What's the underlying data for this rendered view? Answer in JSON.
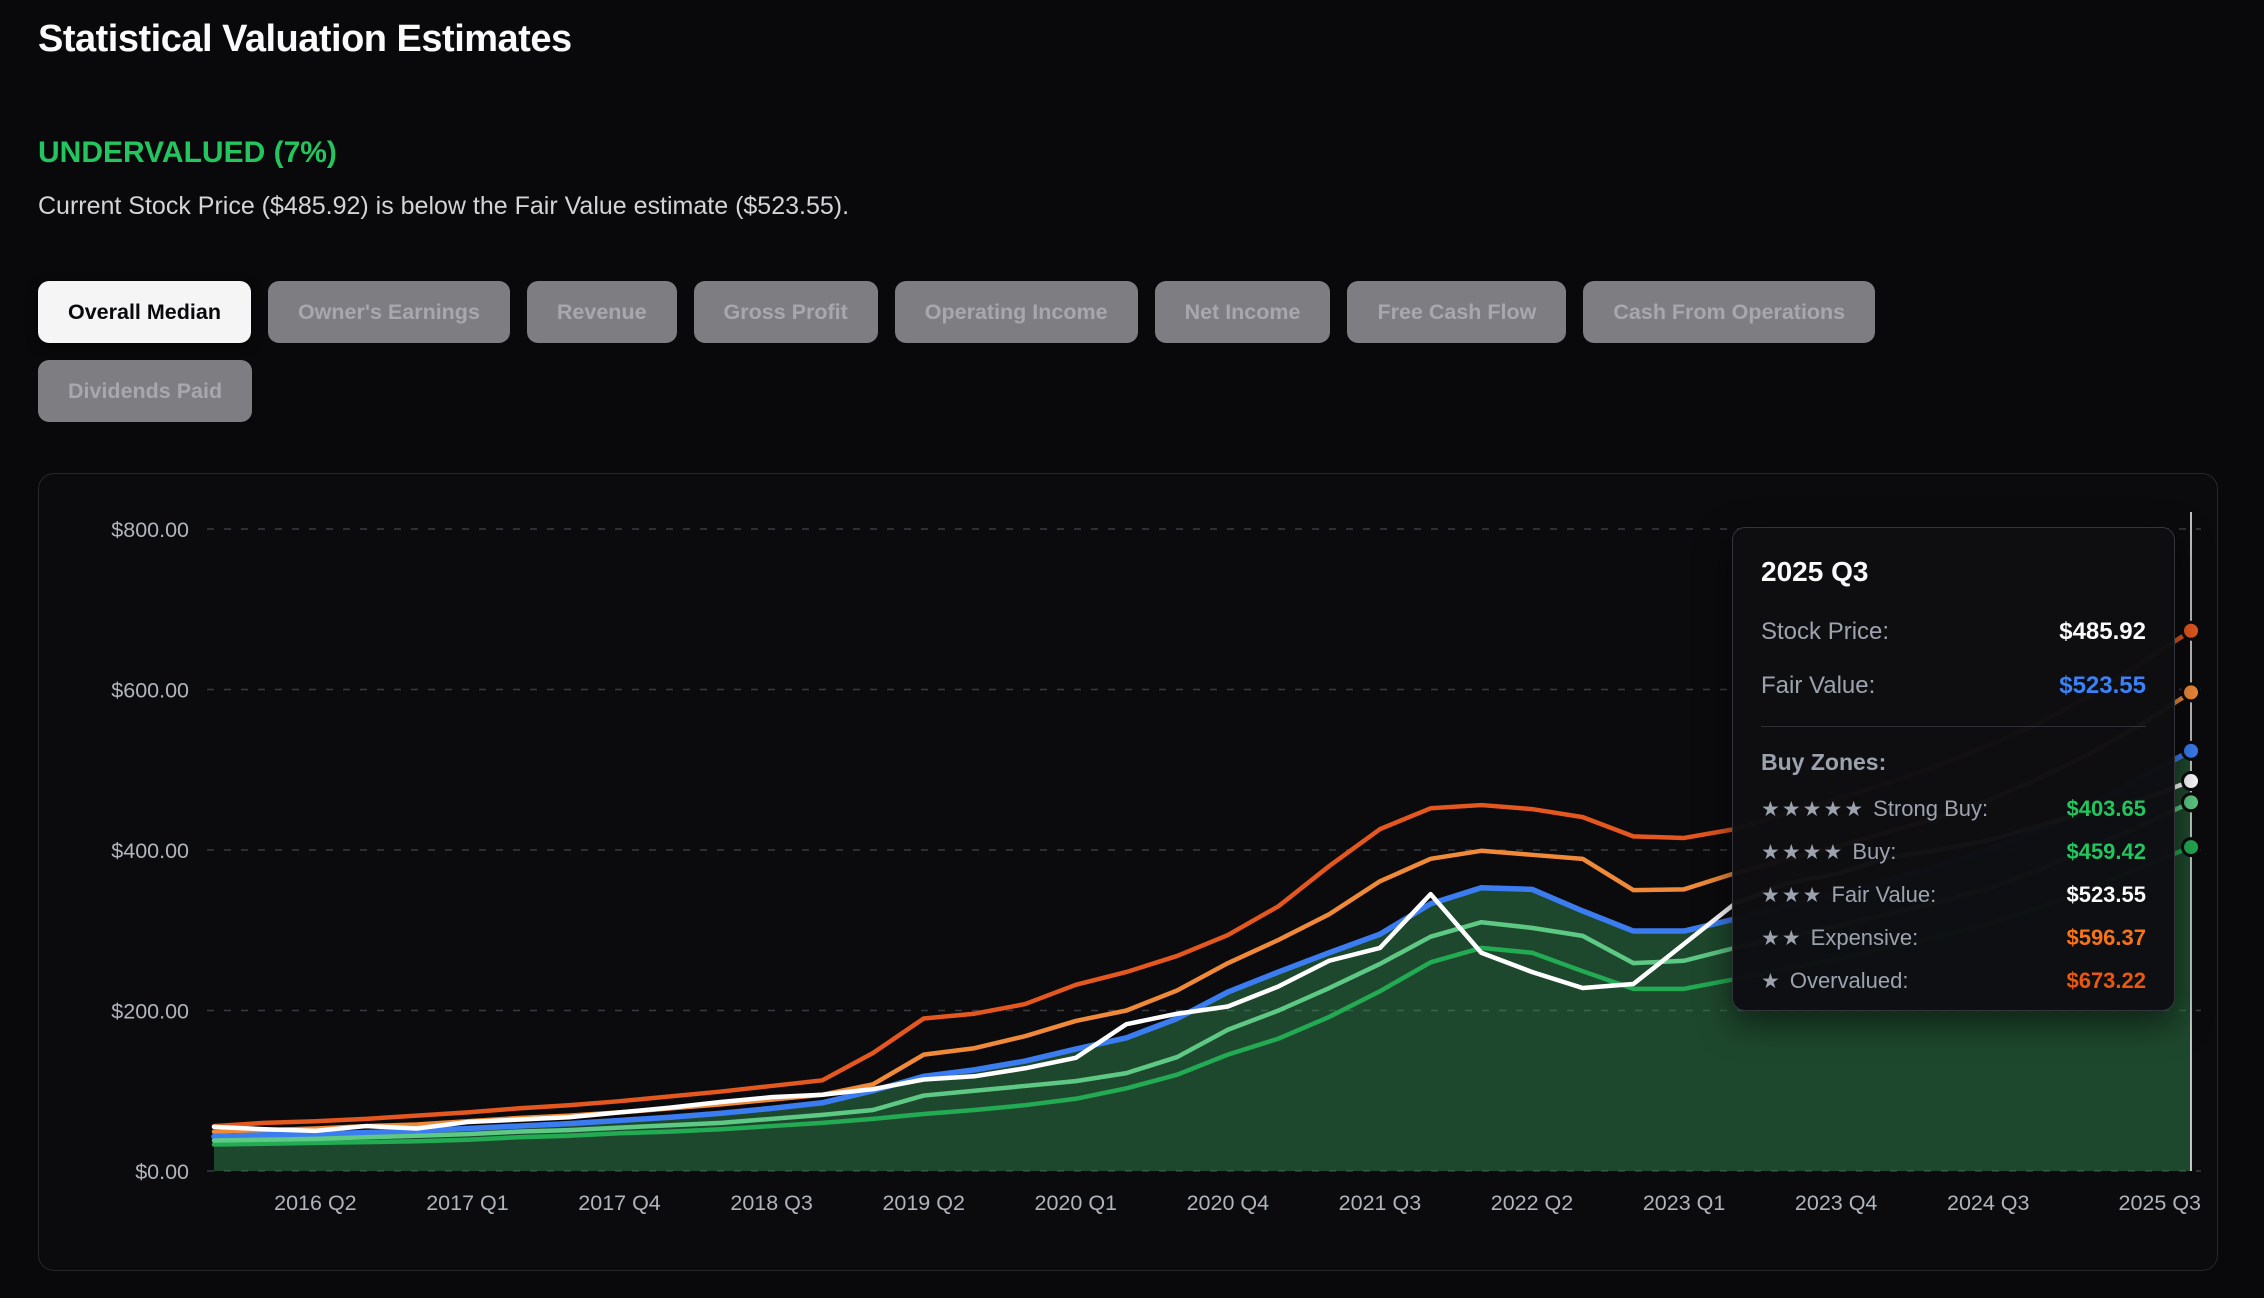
{
  "page": {
    "title": "Statistical Valuation Estimates"
  },
  "status": {
    "label": "UNDERVALUED (7%)",
    "color": "#22c55e",
    "description": "Current Stock Price ($485.92) is below the Fair Value estimate ($523.55)."
  },
  "tabs": {
    "items": [
      {
        "label": "Overall Median",
        "active": true
      },
      {
        "label": "Owner's Earnings",
        "active": false
      },
      {
        "label": "Revenue",
        "active": false
      },
      {
        "label": "Gross Profit",
        "active": false
      },
      {
        "label": "Operating Income",
        "active": false
      },
      {
        "label": "Net Income",
        "active": false
      },
      {
        "label": "Free Cash Flow",
        "active": false
      },
      {
        "label": "Cash From Operations",
        "active": false
      },
      {
        "label": "Dividends Paid",
        "active": false
      }
    ]
  },
  "tooltip": {
    "title": "2025 Q3",
    "rows": [
      {
        "label": "Stock Price:",
        "value": "$485.92",
        "color": "#fafafa"
      },
      {
        "label": "Fair Value:",
        "value": "$523.55",
        "color": "#3b82f6"
      }
    ],
    "zones_title": "Buy Zones:",
    "zones": [
      {
        "stars": "★★★★★",
        "label": "Strong Buy:",
        "value": "$403.65",
        "color": "#22c55e"
      },
      {
        "stars": "★★★★",
        "label": "Buy:",
        "value": "$459.42",
        "color": "#22c55e"
      },
      {
        "stars": "★★★",
        "label": "Fair Value:",
        "value": "$523.55",
        "color": "#fafafa"
      },
      {
        "stars": "★★",
        "label": "Expensive:",
        "value": "$596.37",
        "color": "#f97316"
      },
      {
        "stars": "★",
        "label": "Overvalued:",
        "value": "$673.22",
        "color": "#ea580c"
      }
    ]
  },
  "chart_data": {
    "type": "line",
    "title": "Statistical valuation estimates over time",
    "x_unit": "quarter",
    "x_start": "2015 Q4",
    "x_end": "2025 Q3",
    "n_points": 40,
    "x_ticks": [
      {
        "index": 2,
        "label": "2016 Q2"
      },
      {
        "index": 5,
        "label": "2017 Q1"
      },
      {
        "index": 8,
        "label": "2017 Q4"
      },
      {
        "index": 11,
        "label": "2018 Q3"
      },
      {
        "index": 14,
        "label": "2019 Q2"
      },
      {
        "index": 17,
        "label": "2020 Q1"
      },
      {
        "index": 20,
        "label": "2020 Q4"
      },
      {
        "index": 23,
        "label": "2021 Q3"
      },
      {
        "index": 26,
        "label": "2022 Q2"
      },
      {
        "index": 29,
        "label": "2023 Q1"
      },
      {
        "index": 32,
        "label": "2023 Q4"
      },
      {
        "index": 35,
        "label": "2024 Q3"
      },
      {
        "index": 39,
        "label": "2025 Q3"
      }
    ],
    "ylim": [
      0,
      800
    ],
    "y_ticks": [
      {
        "value": 0,
        "label": "$0.00"
      },
      {
        "value": 200,
        "label": "$200.00"
      },
      {
        "value": 400,
        "label": "$400.00"
      },
      {
        "value": 600,
        "label": "$600.00"
      },
      {
        "value": 800,
        "label": "$800.00"
      }
    ],
    "grid": {
      "horizontal_dashed": true,
      "color": "rgba(148,163,184,0.32)"
    },
    "legend": "none",
    "crosshair_index": 39,
    "area_fill": {
      "under_series": "Fair Value",
      "color": "rgba(58,158,88,0.42)"
    },
    "series": [
      {
        "name": "Overvalued",
        "color": "#e4571e",
        "width": 4.5,
        "values": [
          56,
          60,
          62,
          65,
          69,
          73,
          78,
          82,
          87,
          93,
          99,
          106,
          113,
          147,
          190,
          196,
          208,
          232,
          248,
          268,
          294,
          330,
          380,
          426,
          452,
          456,
          451,
          441,
          417,
          415,
          426,
          445,
          463,
          483,
          505,
          530,
          558,
          592,
          632,
          673.22
        ]
      },
      {
        "name": "Expensive",
        "color": "#f08a38",
        "width": 4.5,
        "values": [
          49,
          51,
          53,
          56,
          58,
          62,
          66,
          69,
          73,
          78,
          83,
          89,
          95,
          108,
          145,
          153,
          168,
          187,
          200,
          225,
          259,
          288,
          320,
          361,
          389,
          399,
          394,
          389,
          350,
          351,
          371,
          388,
          404,
          422,
          440,
          462,
          489,
          520,
          556,
          596.37
        ]
      },
      {
        "name": "Fair Value",
        "color": "#3b7df0",
        "width": 5.5,
        "values": [
          43,
          45,
          46,
          48,
          50,
          53,
          56,
          59,
          63,
          67,
          72,
          78,
          85,
          100,
          118,
          126,
          137,
          152,
          166,
          190,
          223,
          248,
          272,
          295,
          333,
          353,
          351,
          324,
          299,
          299,
          314,
          330,
          345,
          362,
          380,
          400,
          425,
          455,
          490,
          523.55
        ]
      },
      {
        "name": "Strong Buy",
        "color": "#22ab52",
        "width": 4.5,
        "values": [
          33,
          34,
          35,
          36,
          37,
          39,
          42,
          44,
          47,
          49,
          52,
          56,
          60,
          65,
          71,
          76,
          82,
          90,
          103,
          120,
          145,
          165,
          192,
          224,
          260,
          278,
          272,
          249,
          227,
          227,
          239,
          252,
          264,
          278,
          292,
          308,
          328,
          352,
          378,
          403.65
        ]
      },
      {
        "name": "Buy",
        "color": "#5ec984",
        "width": 4.5,
        "values": [
          38,
          39,
          40,
          42,
          44,
          46,
          49,
          51,
          54,
          57,
          60,
          65,
          70,
          76,
          94,
          100,
          106,
          112,
          122,
          142,
          176,
          200,
          228,
          258,
          292,
          310,
          303,
          293,
          259,
          262,
          278,
          292,
          305,
          320,
          335,
          352,
          375,
          402,
          430,
          459.42
        ]
      },
      {
        "name": "Stock Price",
        "color": "#ffffff",
        "width": 4.5,
        "values": [
          55,
          52,
          50,
          56,
          53,
          61,
          64,
          67,
          73,
          79,
          86,
          92,
          95,
          102,
          114,
          118,
          128,
          141,
          183,
          196,
          205,
          230,
          262,
          278,
          345,
          272,
          248,
          228,
          233,
          283,
          333,
          358,
          370,
          390,
          400,
          412,
          430,
          448,
          462,
          485.92
        ]
      }
    ]
  }
}
